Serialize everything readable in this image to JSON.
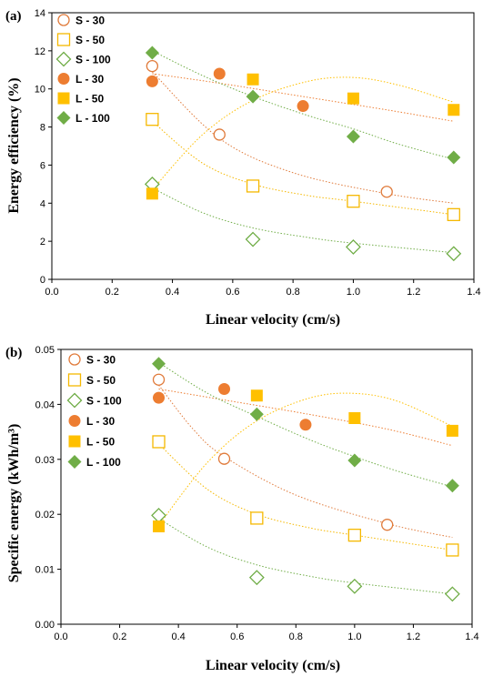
{
  "chart_data": [
    {
      "type": "scatter",
      "panel_label": "(a)",
      "xlabel": "Linear velocity (cm/s)",
      "ylabel": "Energy efficiency (%)",
      "xlim": [
        0,
        1.4
      ],
      "ylim": [
        0,
        14
      ],
      "xticks": [
        "0.0",
        "0.2",
        "0.4",
        "0.6",
        "0.8",
        "1.0",
        "1.2",
        "1.4"
      ],
      "yticks": [
        "0",
        "2",
        "4",
        "6",
        "8",
        "10",
        "12",
        "14"
      ],
      "grid": false,
      "legend_position": "top-left",
      "series": [
        {
          "name": "S - 30",
          "color": "#E07A3A",
          "marker": "circle-open",
          "x": [
            0.333,
            0.556,
            1.111
          ],
          "y": [
            11.2,
            7.6,
            4.6
          ],
          "trend": [
            [
              0.333,
              10.9
            ],
            [
              0.556,
              7.4
            ],
            [
              0.8,
              5.6
            ],
            [
              1.111,
              4.5
            ],
            [
              1.333,
              4.0
            ]
          ]
        },
        {
          "name": "S - 50",
          "color": "#F5B800",
          "marker": "square-open",
          "x": [
            0.333,
            0.667,
            1.0,
            1.333
          ],
          "y": [
            8.4,
            4.9,
            4.1,
            3.4
          ],
          "trend": [
            [
              0.333,
              8.3
            ],
            [
              0.5,
              6.1
            ],
            [
              0.667,
              5.0
            ],
            [
              0.85,
              4.4
            ],
            [
              1.0,
              4.1
            ],
            [
              1.333,
              3.4
            ]
          ]
        },
        {
          "name": "S - 100",
          "color": "#70AD47",
          "marker": "diamond-open",
          "x": [
            0.333,
            0.667,
            1.0,
            1.333
          ],
          "y": [
            5.0,
            2.1,
            1.7,
            1.35
          ],
          "trend": [
            [
              0.333,
              4.8
            ],
            [
              0.5,
              3.5
            ],
            [
              0.667,
              2.7
            ],
            [
              0.85,
              2.2
            ],
            [
              1.0,
              1.9
            ],
            [
              1.333,
              1.4
            ]
          ]
        },
        {
          "name": "L - 30",
          "color": "#ED7D31",
          "marker": "circle-filled",
          "x": [
            0.333,
            0.556,
            0.833
          ],
          "y": [
            10.4,
            10.8,
            9.1
          ],
          "trend": [
            [
              0.333,
              10.8
            ],
            [
              0.556,
              10.3
            ],
            [
              0.833,
              9.6
            ],
            [
              1.111,
              8.9
            ],
            [
              1.333,
              8.3
            ]
          ]
        },
        {
          "name": "L - 50",
          "color": "#FFC000",
          "marker": "square-filled",
          "x": [
            0.333,
            0.667,
            1.0,
            1.333
          ],
          "y": [
            4.5,
            10.5,
            9.5,
            8.9
          ],
          "trend": [
            [
              0.333,
              4.7
            ],
            [
              0.5,
              7.6
            ],
            [
              0.667,
              9.4
            ],
            [
              0.85,
              10.4
            ],
            [
              1.0,
              10.6
            ],
            [
              1.15,
              10.2
            ],
            [
              1.333,
              9.3
            ]
          ]
        },
        {
          "name": "L - 100",
          "color": "#70AD47",
          "marker": "diamond-filled",
          "x": [
            0.333,
            0.667,
            1.0,
            1.333
          ],
          "y": [
            11.9,
            9.6,
            7.5,
            6.4
          ],
          "trend": [
            [
              0.333,
              12.0
            ],
            [
              0.5,
              10.7
            ],
            [
              0.667,
              9.6
            ],
            [
              0.85,
              8.6
            ],
            [
              1.0,
              7.9
            ],
            [
              1.15,
              7.1
            ],
            [
              1.333,
              6.3
            ]
          ]
        }
      ]
    },
    {
      "type": "scatter",
      "panel_label": "(b)",
      "xlabel": "Linear velocity (cm/s)",
      "ylabel": "Specific energy (kWh/m³)",
      "xlim": [
        0,
        1.4
      ],
      "ylim": [
        0,
        0.05
      ],
      "xticks": [
        "0.0",
        "0.2",
        "0.4",
        "0.6",
        "0.8",
        "1.0",
        "1.2",
        "1.4"
      ],
      "yticks": [
        "0.00",
        "0.01",
        "0.02",
        "0.03",
        "0.04",
        "0.05"
      ],
      "grid": false,
      "legend_position": "top-left",
      "series": [
        {
          "name": "S - 30",
          "color": "#E07A3A",
          "marker": "circle-open",
          "x": [
            0.333,
            0.556,
            1.111
          ],
          "y": [
            0.0445,
            0.0301,
            0.0181
          ],
          "trend": [
            [
              0.333,
              0.0435
            ],
            [
              0.45,
              0.0355
            ],
            [
              0.556,
              0.0305
            ],
            [
              0.8,
              0.0235
            ],
            [
              1.111,
              0.0183
            ],
            [
              1.333,
              0.0158
            ]
          ]
        },
        {
          "name": "S - 50",
          "color": "#F5B800",
          "marker": "square-open",
          "x": [
            0.333,
            0.667,
            1.0,
            1.333
          ],
          "y": [
            0.0332,
            0.0193,
            0.0162,
            0.0135
          ],
          "trend": [
            [
              0.333,
              0.0328
            ],
            [
              0.5,
              0.0245
            ],
            [
              0.667,
              0.02
            ],
            [
              0.85,
              0.0175
            ],
            [
              1.0,
              0.0162
            ],
            [
              1.333,
              0.0135
            ]
          ]
        },
        {
          "name": "S - 100",
          "color": "#70AD47",
          "marker": "diamond-open",
          "x": [
            0.333,
            0.667,
            1.0,
            1.333
          ],
          "y": [
            0.0198,
            0.0085,
            0.0069,
            0.0055
          ],
          "trend": [
            [
              0.333,
              0.0192
            ],
            [
              0.5,
              0.014
            ],
            [
              0.667,
              0.0108
            ],
            [
              0.85,
              0.0087
            ],
            [
              1.0,
              0.0075
            ],
            [
              1.333,
              0.0055
            ]
          ]
        },
        {
          "name": "L - 30",
          "color": "#ED7D31",
          "marker": "circle-filled",
          "x": [
            0.333,
            0.556,
            0.833
          ],
          "y": [
            0.0412,
            0.0428,
            0.0363
          ],
          "trend": [
            [
              0.333,
              0.0428
            ],
            [
              0.556,
              0.0408
            ],
            [
              0.833,
              0.0383
            ],
            [
              1.111,
              0.0355
            ],
            [
              1.333,
              0.0325
            ]
          ]
        },
        {
          "name": "L - 50",
          "color": "#FFC000",
          "marker": "square-filled",
          "x": [
            0.333,
            0.667,
            1.0,
            1.333
          ],
          "y": [
            0.0178,
            0.0416,
            0.0375,
            0.0352
          ],
          "trend": [
            [
              0.333,
              0.018
            ],
            [
              0.5,
              0.0295
            ],
            [
              0.667,
              0.037
            ],
            [
              0.85,
              0.0412
            ],
            [
              1.0,
              0.042
            ],
            [
              1.15,
              0.0405
            ],
            [
              1.333,
              0.036
            ]
          ]
        },
        {
          "name": "L - 100",
          "color": "#70AD47",
          "marker": "diamond-filled",
          "x": [
            0.333,
            0.667,
            1.0,
            1.333
          ],
          "y": [
            0.0474,
            0.0382,
            0.0298,
            0.0252
          ],
          "trend": [
            [
              0.333,
              0.0476
            ],
            [
              0.5,
              0.042
            ],
            [
              0.667,
              0.0378
            ],
            [
              0.85,
              0.0335
            ],
            [
              1.0,
              0.0305
            ],
            [
              1.15,
              0.0278
            ],
            [
              1.333,
              0.025
            ]
          ]
        }
      ]
    }
  ]
}
